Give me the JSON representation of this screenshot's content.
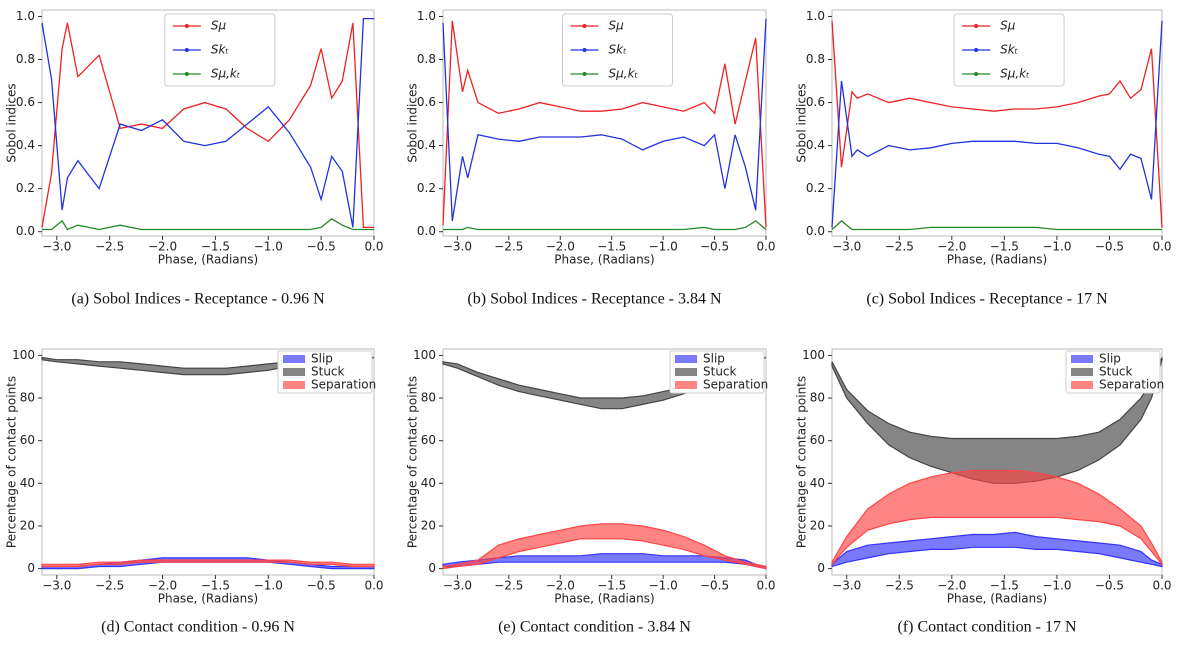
{
  "chart_data": [
    {
      "type": "line",
      "caption": "(a) Sobol Indices - Receptance - 0.96 N",
      "xlabel": "Phase, (Radians)",
      "ylabel": "Sobol indices",
      "legend_loc": "upper center",
      "x": [
        -3.14,
        -3.05,
        -2.95,
        -2.9,
        -2.8,
        -2.6,
        -2.4,
        -2.2,
        -2.0,
        -1.8,
        -1.6,
        -1.4,
        -1.2,
        -1.0,
        -0.8,
        -0.6,
        -0.5,
        -0.4,
        -0.3,
        -0.2,
        -0.1,
        0
      ],
      "xlim": [
        -3.14,
        0
      ],
      "xticks": [
        {
          "value": -3,
          "label": "−3.0"
        },
        {
          "value": -2.5,
          "label": "−2.5"
        },
        {
          "value": -2,
          "label": "−2.0"
        },
        {
          "value": -1.5,
          "label": "−1.5"
        },
        {
          "value": -1,
          "label": "−1.0"
        },
        {
          "value": -0.5,
          "label": "−0.5"
        },
        {
          "value": 0,
          "label": "0.0"
        }
      ],
      "ylim": [
        -0.02,
        1.03
      ],
      "yticks": [
        {
          "value": 0,
          "label": "0.0"
        },
        0.2,
        0.4,
        0.6,
        0.8,
        {
          "value": 1,
          "label": "1.0"
        }
      ],
      "series": [
        {
          "name": "Sμ",
          "color": "#ee2222",
          "values": [
            0.02,
            0.27,
            0.85,
            0.97,
            0.72,
            0.82,
            0.48,
            0.5,
            0.48,
            0.57,
            0.6,
            0.57,
            0.48,
            0.42,
            0.52,
            0.68,
            0.85,
            0.62,
            0.7,
            0.97,
            0.02,
            0.02
          ]
        },
        {
          "name": "Skₜ",
          "color": "#2233dd",
          "values": [
            0.97,
            0.71,
            0.1,
            0.25,
            0.33,
            0.2,
            0.5,
            0.47,
            0.52,
            0.42,
            0.4,
            0.42,
            0.5,
            0.58,
            0.46,
            0.3,
            0.15,
            0.35,
            0.28,
            0.02,
            0.99,
            0.99
          ]
        },
        {
          "name": "Sμ,kₜ",
          "color": "#228b22",
          "values": [
            0.01,
            0.01,
            0.05,
            0.01,
            0.03,
            0.01,
            0.03,
            0.01,
            0.01,
            0.01,
            0.01,
            0.01,
            0.01,
            0.01,
            0.01,
            0.01,
            0.02,
            0.06,
            0.03,
            0.01,
            0.01,
            0.01
          ]
        }
      ]
    },
    {
      "type": "line",
      "caption": "(b) Sobol Indices - Receptance - 3.84 N",
      "xlabel": "Phase, (Radians)",
      "ylabel": "Sobol indices",
      "legend_loc": "upper center",
      "x": [
        -3.14,
        -3.05,
        -2.95,
        -2.9,
        -2.8,
        -2.6,
        -2.4,
        -2.2,
        -2.0,
        -1.8,
        -1.6,
        -1.4,
        -1.2,
        -1.0,
        -0.8,
        -0.6,
        -0.5,
        -0.4,
        -0.3,
        -0.2,
        -0.1,
        0
      ],
      "xlim": [
        -3.14,
        0
      ],
      "xticks": [
        {
          "value": -3,
          "label": "−3.0"
        },
        {
          "value": -2.5,
          "label": "−2.5"
        },
        {
          "value": -2,
          "label": "−2.0"
        },
        {
          "value": -1.5,
          "label": "−1.5"
        },
        {
          "value": -1,
          "label": "−1.0"
        },
        {
          "value": -0.5,
          "label": "−0.5"
        },
        {
          "value": 0,
          "label": "0.0"
        }
      ],
      "ylim": [
        -0.02,
        1.03
      ],
      "yticks": [
        {
          "value": 0,
          "label": "0.0"
        },
        0.2,
        0.4,
        0.6,
        0.8,
        {
          "value": 1,
          "label": "1.0"
        }
      ],
      "series": [
        {
          "name": "Sμ",
          "color": "#ee2222",
          "values": [
            0.03,
            0.98,
            0.65,
            0.75,
            0.6,
            0.55,
            0.57,
            0.6,
            0.58,
            0.56,
            0.56,
            0.57,
            0.6,
            0.58,
            0.56,
            0.6,
            0.55,
            0.78,
            0.5,
            0.7,
            0.9,
            0.02
          ]
        },
        {
          "name": "Skₜ",
          "color": "#2233dd",
          "values": [
            0.97,
            0.05,
            0.35,
            0.25,
            0.45,
            0.43,
            0.42,
            0.44,
            0.44,
            0.44,
            0.45,
            0.43,
            0.38,
            0.42,
            0.44,
            0.4,
            0.45,
            0.2,
            0.45,
            0.3,
            0.1,
            0.99
          ]
        },
        {
          "name": "Sμ,kₜ",
          "color": "#228b22",
          "values": [
            0.01,
            0.01,
            0.01,
            0.02,
            0.01,
            0.01,
            0.01,
            0.01,
            0.01,
            0.01,
            0.01,
            0.01,
            0.01,
            0.01,
            0.01,
            0.02,
            0.01,
            0.01,
            0.01,
            0.02,
            0.05,
            0.01
          ]
        }
      ]
    },
    {
      "type": "line",
      "caption": "(c) Sobol Indices - Receptance - 17 N",
      "xlabel": "Phase, (Radians)",
      "ylabel": "Sobol indices",
      "legend_loc": "upper center",
      "x": [
        -3.14,
        -3.05,
        -2.95,
        -2.9,
        -2.8,
        -2.6,
        -2.4,
        -2.2,
        -2.0,
        -1.8,
        -1.6,
        -1.4,
        -1.2,
        -1.0,
        -0.8,
        -0.6,
        -0.5,
        -0.4,
        -0.3,
        -0.2,
        -0.1,
        0
      ],
      "xlim": [
        -3.14,
        0
      ],
      "xticks": [
        {
          "value": -3,
          "label": "−3.0"
        },
        {
          "value": -2.5,
          "label": "−2.5"
        },
        {
          "value": -2,
          "label": "−2.0"
        },
        {
          "value": -1.5,
          "label": "−1.5"
        },
        {
          "value": -1,
          "label": "−1.0"
        },
        {
          "value": -0.5,
          "label": "−0.5"
        },
        {
          "value": 0,
          "label": "0.0"
        }
      ],
      "ylim": [
        -0.02,
        1.03
      ],
      "yticks": [
        {
          "value": 0,
          "label": "0.0"
        },
        0.2,
        0.4,
        0.6,
        0.8,
        {
          "value": 1,
          "label": "1.0"
        }
      ],
      "series": [
        {
          "name": "Sμ",
          "color": "#ee2222",
          "values": [
            0.98,
            0.3,
            0.65,
            0.62,
            0.64,
            0.6,
            0.62,
            0.6,
            0.58,
            0.57,
            0.56,
            0.57,
            0.57,
            0.58,
            0.6,
            0.63,
            0.64,
            0.7,
            0.62,
            0.66,
            0.85,
            0.02
          ]
        },
        {
          "name": "Skₜ",
          "color": "#2233dd",
          "values": [
            0.02,
            0.7,
            0.35,
            0.38,
            0.35,
            0.4,
            0.38,
            0.39,
            0.41,
            0.42,
            0.42,
            0.42,
            0.41,
            0.41,
            0.39,
            0.36,
            0.35,
            0.29,
            0.36,
            0.34,
            0.15,
            0.98
          ]
        },
        {
          "name": "Sμ,kₜ",
          "color": "#228b22",
          "values": [
            0.01,
            0.05,
            0.01,
            0.01,
            0.01,
            0.01,
            0.01,
            0.02,
            0.02,
            0.02,
            0.02,
            0.02,
            0.02,
            0.01,
            0.01,
            0.01,
            0.01,
            0.01,
            0.01,
            0.01,
            0.01,
            0.01
          ]
        }
      ]
    },
    {
      "type": "area",
      "caption": "(d) Contact condition - 0.96 N",
      "xlabel": "Phase, (Radians)",
      "ylabel": "Percentage of contact points",
      "legend_loc": "upper right",
      "x": [
        -3.14,
        -3.0,
        -2.8,
        -2.6,
        -2.4,
        -2.2,
        -2.0,
        -1.8,
        -1.6,
        -1.4,
        -1.2,
        -1.0,
        -0.8,
        -0.6,
        -0.4,
        -0.2,
        -0.1,
        0
      ],
      "xlim": [
        -3.14,
        0
      ],
      "xticks": [
        {
          "value": -3,
          "label": "−3.0"
        },
        {
          "value": -2.5,
          "label": "−2.5"
        },
        {
          "value": -2,
          "label": "−2.0"
        },
        {
          "value": -1.5,
          "label": "−1.5"
        },
        {
          "value": -1,
          "label": "−1.0"
        },
        {
          "value": -0.5,
          "label": "−0.5"
        },
        {
          "value": 0,
          "label": "0.0"
        }
      ],
      "ylim": [
        -3,
        103
      ],
      "yticks": [
        0,
        20,
        40,
        60,
        80,
        100
      ],
      "series": [
        {
          "name": "Slip",
          "color": "#3333ff",
          "low": [
            0,
            0,
            0,
            1,
            1,
            2,
            3,
            3,
            3,
            3,
            3,
            3,
            2,
            1,
            0,
            0,
            0,
            0
          ],
          "high": [
            1,
            1,
            1,
            2,
            3,
            4,
            5,
            5,
            5,
            5,
            5,
            4,
            3,
            2,
            1,
            1,
            1,
            1
          ]
        },
        {
          "name": "Stuck",
          "color": "#444444",
          "low": [
            98,
            97,
            96,
            95,
            94,
            93,
            92,
            91,
            91,
            91,
            92,
            93,
            95,
            96,
            97,
            98,
            98,
            99
          ],
          "high": [
            99,
            98,
            98,
            97,
            97,
            96,
            95,
            94,
            94,
            94,
            95,
            96,
            97,
            98,
            98,
            99,
            99,
            99
          ]
        },
        {
          "name": "Separation",
          "color": "#ff4444",
          "low": [
            1,
            1,
            1,
            2,
            2,
            3,
            3,
            3,
            3,
            3,
            3,
            3,
            3,
            2,
            2,
            1,
            1,
            1
          ],
          "high": [
            2,
            2,
            2,
            3,
            3,
            4,
            4,
            4,
            4,
            4,
            4,
            4,
            4,
            3,
            3,
            2,
            2,
            2
          ]
        }
      ]
    },
    {
      "type": "area",
      "caption": "(e) Contact condition - 3.84 N",
      "xlabel": "Phase, (Radians)",
      "ylabel": "Percentage of contact points",
      "legend_loc": "upper right",
      "x": [
        -3.14,
        -3.0,
        -2.8,
        -2.6,
        -2.4,
        -2.2,
        -2.0,
        -1.8,
        -1.6,
        -1.4,
        -1.2,
        -1.0,
        -0.8,
        -0.6,
        -0.4,
        -0.2,
        -0.1,
        0
      ],
      "xlim": [
        -3.14,
        0
      ],
      "xticks": [
        {
          "value": -3,
          "label": "−3.0"
        },
        {
          "value": -2.5,
          "label": "−2.5"
        },
        {
          "value": -2,
          "label": "−2.0"
        },
        {
          "value": -1.5,
          "label": "−1.5"
        },
        {
          "value": -1,
          "label": "−1.0"
        },
        {
          "value": -0.5,
          "label": "−0.5"
        },
        {
          "value": 0,
          "label": "0.0"
        }
      ],
      "ylim": [
        -3,
        103
      ],
      "yticks": [
        0,
        20,
        40,
        60,
        80,
        100
      ],
      "series": [
        {
          "name": "Slip",
          "color": "#3333ff",
          "low": [
            1,
            1,
            2,
            3,
            3,
            3,
            3,
            3,
            3,
            3,
            3,
            3,
            3,
            3,
            3,
            2,
            1,
            0
          ],
          "high": [
            2,
            3,
            4,
            5,
            6,
            6,
            6,
            6,
            7,
            7,
            7,
            6,
            6,
            6,
            5,
            4,
            2,
            1
          ]
        },
        {
          "name": "Stuck",
          "color": "#444444",
          "low": [
            96,
            94,
            90,
            86,
            83,
            81,
            79,
            77,
            75,
            75,
            77,
            79,
            82,
            86,
            90,
            95,
            97,
            99
          ],
          "high": [
            97,
            96,
            92,
            89,
            86,
            84,
            82,
            80,
            80,
            80,
            81,
            83,
            85,
            88,
            92,
            96,
            98,
            99
          ]
        },
        {
          "name": "Separation",
          "color": "#ff4444",
          "low": [
            0,
            1,
            2,
            5,
            8,
            10,
            12,
            14,
            14,
            14,
            13,
            11,
            9,
            6,
            4,
            2,
            1,
            0
          ],
          "high": [
            1,
            2,
            4,
            11,
            14,
            16,
            18,
            20,
            21,
            21,
            20,
            18,
            15,
            11,
            6,
            3,
            2,
            1
          ]
        }
      ]
    },
    {
      "type": "area",
      "caption": "(f) Contact condition - 17 N",
      "xlabel": "Phase, (Radians)",
      "ylabel": "Percentage of contact points",
      "legend_loc": "upper right",
      "x": [
        -3.14,
        -3.0,
        -2.8,
        -2.6,
        -2.4,
        -2.2,
        -2.0,
        -1.8,
        -1.6,
        -1.4,
        -1.2,
        -1.0,
        -0.8,
        -0.6,
        -0.4,
        -0.2,
        -0.1,
        0
      ],
      "xlim": [
        -3.14,
        0
      ],
      "xticks": [
        {
          "value": -3,
          "label": "−3.0"
        },
        {
          "value": -2.5,
          "label": "−2.5"
        },
        {
          "value": -2,
          "label": "−2.0"
        },
        {
          "value": -1.5,
          "label": "−1.5"
        },
        {
          "value": -1,
          "label": "−1.0"
        },
        {
          "value": -0.5,
          "label": "−0.5"
        },
        {
          "value": 0,
          "label": "0.0"
        }
      ],
      "ylim": [
        -3,
        103
      ],
      "yticks": [
        0,
        20,
        40,
        60,
        80,
        100
      ],
      "series": [
        {
          "name": "Slip",
          "color": "#3333ff",
          "low": [
            1,
            3,
            5,
            7,
            8,
            9,
            9,
            10,
            10,
            10,
            9,
            9,
            8,
            7,
            5,
            3,
            2,
            1
          ],
          "high": [
            2,
            8,
            11,
            12,
            13,
            14,
            15,
            16,
            16,
            17,
            15,
            14,
            13,
            12,
            11,
            8,
            4,
            2
          ]
        },
        {
          "name": "Stuck",
          "color": "#444444",
          "low": [
            95,
            80,
            68,
            58,
            52,
            48,
            45,
            42,
            40,
            40,
            41,
            43,
            46,
            51,
            58,
            70,
            80,
            98
          ],
          "high": [
            97,
            84,
            74,
            68,
            64,
            62,
            61,
            61,
            61,
            61,
            61,
            61,
            62,
            64,
            70,
            80,
            88,
            99
          ]
        },
        {
          "name": "Separation",
          "color": "#ff4444",
          "low": [
            2,
            10,
            18,
            21,
            23,
            24,
            24,
            24,
            24,
            24,
            24,
            24,
            23,
            22,
            20,
            14,
            8,
            2
          ],
          "high": [
            3,
            15,
            28,
            35,
            40,
            43,
            45,
            46,
            46,
            46,
            45,
            43,
            40,
            35,
            28,
            20,
            12,
            3
          ]
        }
      ]
    }
  ]
}
